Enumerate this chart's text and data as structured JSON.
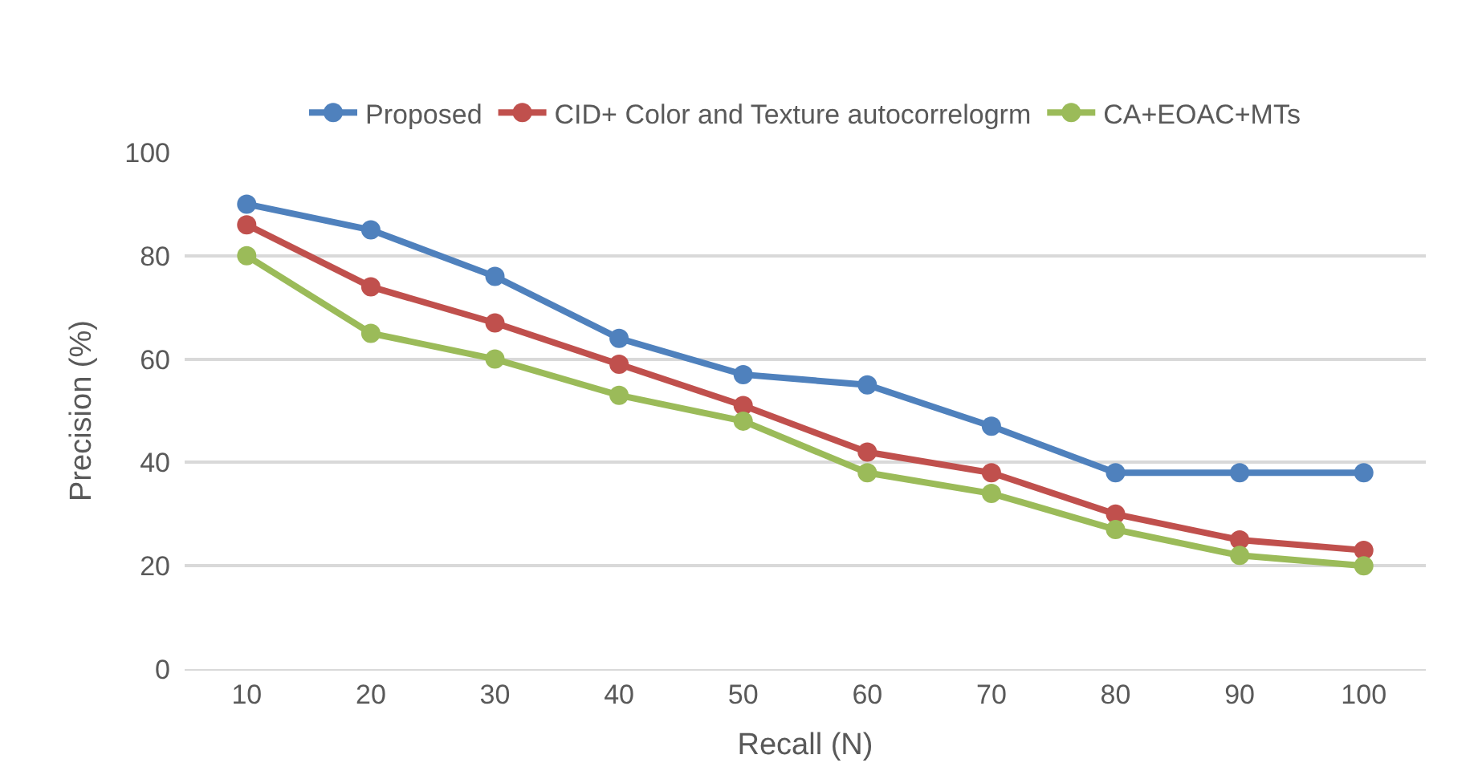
{
  "chart_data": {
    "type": "line",
    "xlabel": "Recall (N)",
    "ylabel": "Precision (%)",
    "categories": [
      "10",
      "20",
      "30",
      "40",
      "50",
      "60",
      "70",
      "80",
      "90",
      "100"
    ],
    "series": [
      {
        "name": "Proposed",
        "color": "#4f81bd",
        "values": [
          90,
          85,
          76,
          64,
          57,
          55,
          47,
          38,
          38,
          38
        ]
      },
      {
        "name": "CID+ Color and Texture autocorrelogrm",
        "color": "#c0504d",
        "values": [
          86,
          74,
          67,
          59,
          51,
          42,
          38,
          30,
          25,
          23
        ]
      },
      {
        "name": "CA+EOAC+MTs",
        "color": "#9bbb59",
        "values": [
          80,
          65,
          60,
          53,
          48,
          38,
          34,
          27,
          22,
          20
        ]
      }
    ],
    "ylim": [
      0,
      100
    ],
    "yticks": [
      0,
      20,
      40,
      60,
      80,
      100
    ],
    "grid": "y",
    "legend": "top",
    "marker": "circle",
    "line_style": "solid"
  }
}
